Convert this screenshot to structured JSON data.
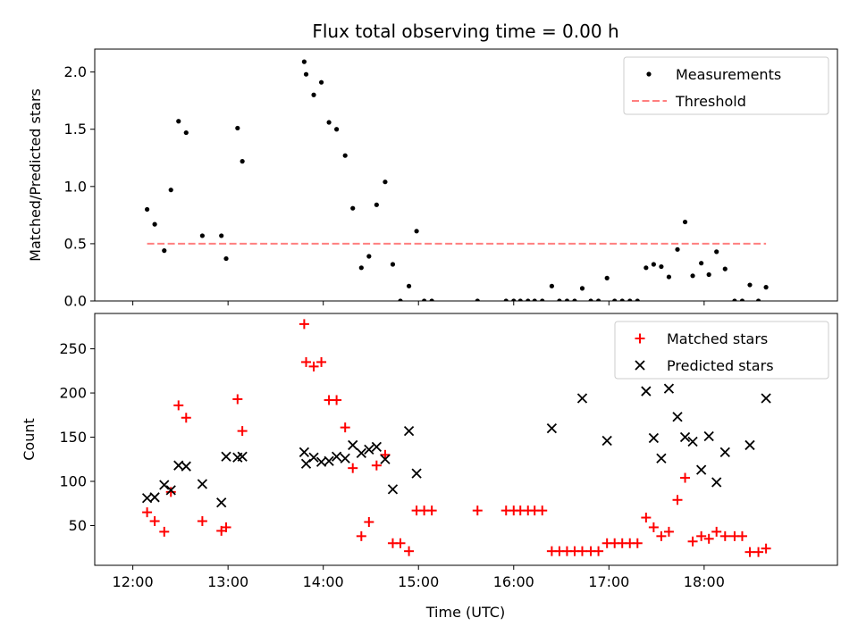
{
  "chart_data": [
    {
      "type": "scatter",
      "title": "Flux total observing time = 0.00 h",
      "xlabel": "",
      "ylabel": "Matched/Predicted stars",
      "xlim": [
        11.6,
        19.4
      ],
      "ylim": [
        0.0,
        2.2
      ],
      "yticks": [
        0.0,
        0.5,
        1.0,
        1.5,
        2.0
      ],
      "ytick_labels": [
        "0.0",
        "0.5",
        "1.0",
        "1.5",
        "2.0"
      ],
      "legend_position": "top-right",
      "series": [
        {
          "name": "Measurements",
          "marker": "dot",
          "color": "#000000",
          "points": [
            [
              12.15,
              0.8
            ],
            [
              12.23,
              0.67
            ],
            [
              12.33,
              0.44
            ],
            [
              12.4,
              0.97
            ],
            [
              12.48,
              1.57
            ],
            [
              12.56,
              1.47
            ],
            [
              12.73,
              0.57
            ],
            [
              12.93,
              0.57
            ],
            [
              12.98,
              0.37
            ],
            [
              13.1,
              1.51
            ],
            [
              13.15,
              1.22
            ],
            [
              13.8,
              2.09
            ],
            [
              13.82,
              1.98
            ],
            [
              13.9,
              1.8
            ],
            [
              13.98,
              1.91
            ],
            [
              14.06,
              1.56
            ],
            [
              14.14,
              1.5
            ],
            [
              14.23,
              1.27
            ],
            [
              14.31,
              0.81
            ],
            [
              14.4,
              0.29
            ],
            [
              14.48,
              0.39
            ],
            [
              14.56,
              0.84
            ],
            [
              14.65,
              1.04
            ],
            [
              14.73,
              0.32
            ],
            [
              14.81,
              0.0
            ],
            [
              14.9,
              0.13
            ],
            [
              14.98,
              0.61
            ],
            [
              15.06,
              0.0
            ],
            [
              15.14,
              0.0
            ],
            [
              15.62,
              0.0
            ],
            [
              15.92,
              0.0
            ],
            [
              16.0,
              0.0
            ],
            [
              16.07,
              0.0
            ],
            [
              16.15,
              0.0
            ],
            [
              16.22,
              0.0
            ],
            [
              16.3,
              0.0
            ],
            [
              16.4,
              0.13
            ],
            [
              16.48,
              0.0
            ],
            [
              16.56,
              0.0
            ],
            [
              16.64,
              0.0
            ],
            [
              16.72,
              0.11
            ],
            [
              16.81,
              0.0
            ],
            [
              16.89,
              0.0
            ],
            [
              16.98,
              0.2
            ],
            [
              17.06,
              0.0
            ],
            [
              17.14,
              0.0
            ],
            [
              17.22,
              0.0
            ],
            [
              17.3,
              0.0
            ],
            [
              17.39,
              0.29
            ],
            [
              17.47,
              0.32
            ],
            [
              17.55,
              0.3
            ],
            [
              17.63,
              0.21
            ],
            [
              17.72,
              0.45
            ],
            [
              17.8,
              0.69
            ],
            [
              17.88,
              0.22
            ],
            [
              17.97,
              0.33
            ],
            [
              18.05,
              0.23
            ],
            [
              18.13,
              0.43
            ],
            [
              18.22,
              0.28
            ],
            [
              18.32,
              0.0
            ],
            [
              18.4,
              0.0
            ],
            [
              18.48,
              0.14
            ],
            [
              18.57,
              0.0
            ],
            [
              18.65,
              0.12
            ]
          ]
        },
        {
          "name": "Threshold",
          "marker": "dashed-line",
          "color": "#ff7f7f",
          "x_range": [
            12.15,
            18.65
          ],
          "y": 0.5
        }
      ]
    },
    {
      "type": "scatter",
      "title": "",
      "xlabel": "Time (UTC)",
      "ylabel": "Count",
      "xlim": [
        11.6,
        19.4
      ],
      "ylim": [
        5,
        290
      ],
      "yticks": [
        50,
        100,
        150,
        200,
        250
      ],
      "ytick_labels": [
        "50",
        "100",
        "150",
        "200",
        "250"
      ],
      "xticks": [
        12,
        13,
        14,
        15,
        16,
        17,
        18
      ],
      "xtick_labels": [
        "12:00",
        "13:00",
        "14:00",
        "15:00",
        "16:00",
        "17:00",
        "18:00"
      ],
      "legend_position": "top-right",
      "series": [
        {
          "name": "Matched stars",
          "marker": "plus",
          "color": "#ff0000",
          "points": [
            [
              12.15,
              65
            ],
            [
              12.23,
              55
            ],
            [
              12.33,
              43
            ],
            [
              12.4,
              88
            ],
            [
              12.48,
              186
            ],
            [
              12.56,
              172
            ],
            [
              12.73,
              55
            ],
            [
              12.93,
              44
            ],
            [
              12.98,
              48
            ],
            [
              13.1,
              193
            ],
            [
              13.15,
              157
            ],
            [
              13.8,
              278
            ],
            [
              13.82,
              235
            ],
            [
              13.9,
              230
            ],
            [
              13.98,
              235
            ],
            [
              14.06,
              192
            ],
            [
              14.14,
              192
            ],
            [
              14.23,
              161
            ],
            [
              14.31,
              115
            ],
            [
              14.4,
              38
            ],
            [
              14.48,
              54
            ],
            [
              14.56,
              118
            ],
            [
              14.65,
              130
            ],
            [
              14.73,
              30
            ],
            [
              14.81,
              30
            ],
            [
              14.9,
              21
            ],
            [
              14.98,
              67
            ],
            [
              15.06,
              67
            ],
            [
              15.14,
              67
            ],
            [
              15.62,
              67
            ],
            [
              15.92,
              67
            ],
            [
              16.0,
              67
            ],
            [
              16.07,
              67
            ],
            [
              16.15,
              67
            ],
            [
              16.22,
              67
            ],
            [
              16.3,
              67
            ],
            [
              16.4,
              21
            ],
            [
              16.48,
              21
            ],
            [
              16.56,
              21
            ],
            [
              16.64,
              21
            ],
            [
              16.72,
              21
            ],
            [
              16.81,
              21
            ],
            [
              16.89,
              21
            ],
            [
              16.98,
              30
            ],
            [
              17.06,
              30
            ],
            [
              17.14,
              30
            ],
            [
              17.22,
              30
            ],
            [
              17.3,
              30
            ],
            [
              17.39,
              59
            ],
            [
              17.47,
              48
            ],
            [
              17.55,
              38
            ],
            [
              17.63,
              43
            ],
            [
              17.72,
              79
            ],
            [
              17.8,
              104
            ],
            [
              17.88,
              32
            ],
            [
              17.97,
              38
            ],
            [
              18.05,
              35
            ],
            [
              18.13,
              43
            ],
            [
              18.22,
              38
            ],
            [
              18.32,
              38
            ],
            [
              18.4,
              38
            ],
            [
              18.48,
              20
            ],
            [
              18.57,
              20
            ],
            [
              18.65,
              24
            ]
          ]
        },
        {
          "name": "Predicted stars",
          "marker": "x",
          "color": "#000000",
          "points": [
            [
              12.15,
              81
            ],
            [
              12.23,
              82
            ],
            [
              12.33,
              96
            ],
            [
              12.4,
              90
            ],
            [
              12.48,
              118
            ],
            [
              12.56,
              117
            ],
            [
              12.73,
              97
            ],
            [
              12.93,
              76
            ],
            [
              12.98,
              128
            ],
            [
              13.1,
              127
            ],
            [
              13.15,
              128
            ],
            [
              13.8,
              133
            ],
            [
              13.82,
              120
            ],
            [
              13.9,
              127
            ],
            [
              13.98,
              122
            ],
            [
              14.06,
              123
            ],
            [
              14.14,
              128
            ],
            [
              14.23,
              126
            ],
            [
              14.31,
              141
            ],
            [
              14.4,
              132
            ],
            [
              14.48,
              136
            ],
            [
              14.56,
              139
            ],
            [
              14.65,
              125
            ],
            [
              14.73,
              91
            ],
            [
              14.9,
              157
            ],
            [
              14.98,
              109
            ],
            [
              16.4,
              160
            ],
            [
              16.72,
              194
            ],
            [
              16.98,
              146
            ],
            [
              17.39,
              202
            ],
            [
              17.47,
              149
            ],
            [
              17.55,
              126
            ],
            [
              17.63,
              205
            ],
            [
              17.72,
              173
            ],
            [
              17.8,
              150
            ],
            [
              17.88,
              145
            ],
            [
              17.97,
              113
            ],
            [
              18.05,
              151
            ],
            [
              18.13,
              99
            ],
            [
              18.22,
              133
            ],
            [
              18.48,
              141
            ],
            [
              18.65,
              194
            ]
          ]
        }
      ]
    }
  ]
}
